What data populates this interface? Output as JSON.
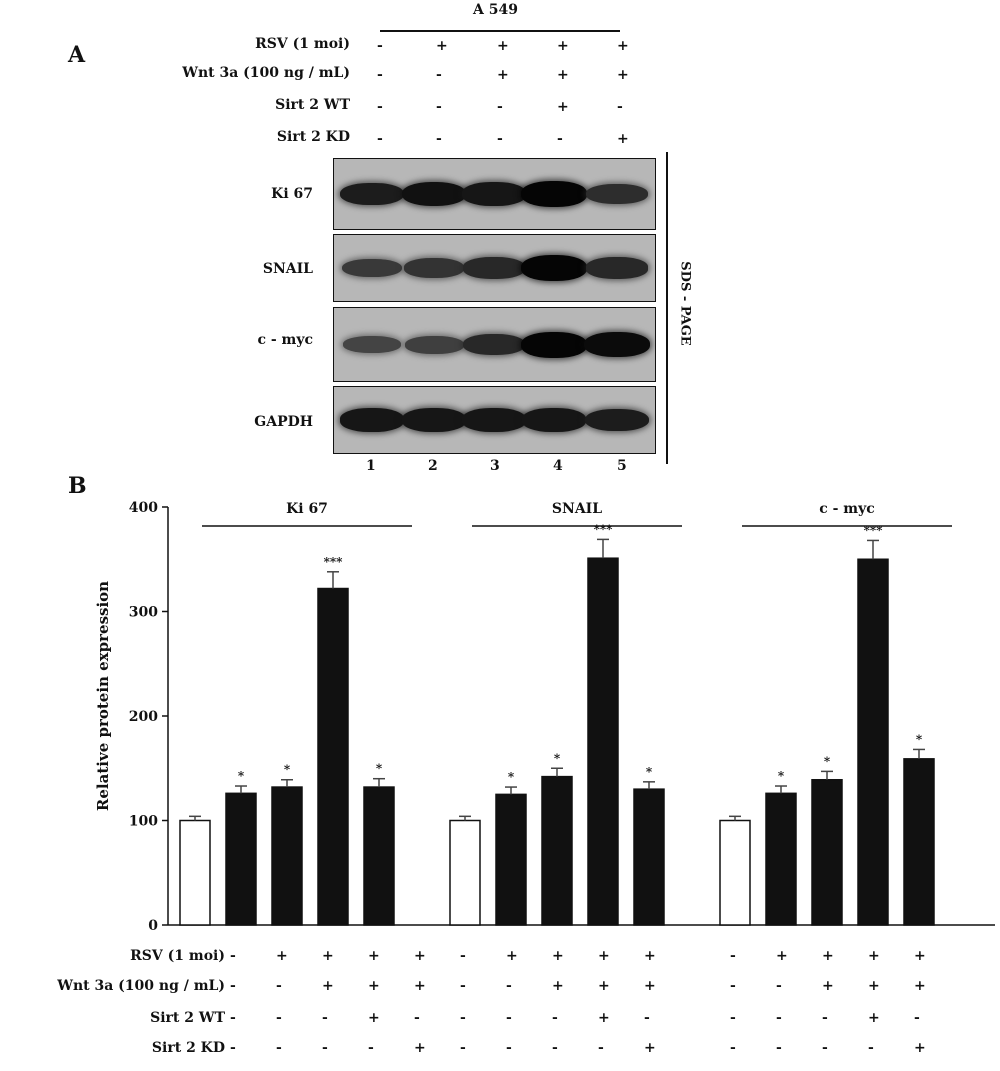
{
  "panel_a": {
    "letter": "A",
    "cell_line": "A 549",
    "conditions": [
      {
        "label": "RSV (1 moi)",
        "signs": [
          "-",
          "+",
          "+",
          "+",
          "+"
        ]
      },
      {
        "label": "Wnt 3a (100 ng / mL)",
        "signs": [
          "-",
          "-",
          "+",
          "+",
          "+"
        ]
      },
      {
        "label": "Sirt 2 WT",
        "signs": [
          "-",
          "-",
          "-",
          "+",
          "-"
        ]
      },
      {
        "label": "Sirt 2 KD",
        "signs": [
          "-",
          "-",
          "-",
          "-",
          "+"
        ]
      }
    ],
    "blots": [
      {
        "label": "Ki 67",
        "intensity": [
          0.8,
          0.9,
          0.85,
          1.0,
          0.65
        ]
      },
      {
        "label": "SNAIL",
        "intensity": [
          0.55,
          0.6,
          0.7,
          1.0,
          0.7
        ]
      },
      {
        "label": "c - myc",
        "intensity": [
          0.45,
          0.5,
          0.7,
          1.0,
          0.95
        ]
      },
      {
        "label": "GAPDH",
        "intensity": [
          0.85,
          0.85,
          0.85,
          0.85,
          0.8
        ]
      }
    ],
    "lanes": [
      "1",
      "2",
      "3",
      "4",
      "5"
    ],
    "side_label": "SDS - PAGE"
  },
  "panel_b": {
    "letter": "B",
    "conditions": [
      {
        "label": "RSV (1 moi)",
        "signs": [
          "-",
          "+",
          "+",
          "+",
          "+"
        ]
      },
      {
        "label": "Wnt 3a (100 ng / mL)",
        "signs": [
          "-",
          "-",
          "+",
          "+",
          "+"
        ]
      },
      {
        "label": "Sirt 2 WT",
        "signs": [
          "-",
          "-",
          "-",
          "+",
          "-"
        ]
      },
      {
        "label": "Sirt 2 KD",
        "signs": [
          "-",
          "-",
          "-",
          "-",
          "+"
        ]
      }
    ]
  },
  "chart_data": {
    "type": "bar",
    "ylabel": "Relative protein expression",
    "ylim": [
      0,
      400
    ],
    "yticks": [
      0,
      100,
      200,
      300,
      400
    ],
    "groups": [
      {
        "name": "Ki 67",
        "values": [
          100,
          126,
          132,
          322,
          132
        ],
        "errors": [
          4,
          7,
          7,
          16,
          8
        ],
        "significance": [
          "",
          "*",
          "*",
          "***",
          "*"
        ]
      },
      {
        "name": "SNAIL",
        "values": [
          100,
          125,
          142,
          351,
          130
        ],
        "errors": [
          4,
          7,
          8,
          18,
          7
        ],
        "significance": [
          "",
          "*",
          "*",
          "***",
          "*"
        ]
      },
      {
        "name": "c - myc",
        "values": [
          100,
          126,
          139,
          350,
          159
        ],
        "errors": [
          4,
          7,
          8,
          18,
          9
        ],
        "significance": [
          "",
          "*",
          "*",
          "***",
          "*"
        ]
      }
    ],
    "bar_colors": [
      "#ffffff",
      "#111111",
      "#111111",
      "#111111",
      "#111111"
    ]
  }
}
